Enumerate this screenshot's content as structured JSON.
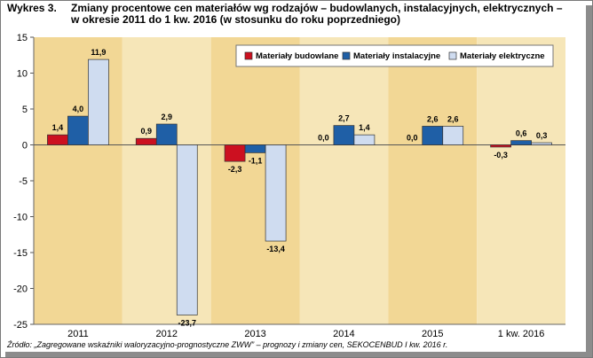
{
  "chart_label": "Wykres 3.",
  "chart_title": "Zmiany procentowe cen materiałów wg rodzajów – budowlanych, instalacyjnych, elektrycznych – w okresie 2011 do 1 kw. 2016 (w stosunku do roku poprzedniego)",
  "source": "Źródło: „Zagregowane wskaźniki waloryzacyjno-prognostyczne ZWW” – prognozy i zmiany cen, SEKOCENBUD I kw. 2016 r.",
  "colors": {
    "budowlane": "#cc1020",
    "instalacyjne": "#1f5fa6",
    "elektryczne": "#cfdcf0",
    "plot_band_light": "#f6e6b8",
    "plot_band_dark": "#f2d795"
  },
  "chart_data": {
    "type": "bar",
    "categories": [
      "2011",
      "2012",
      "2013",
      "2014",
      "2015",
      "1 kw. 2016"
    ],
    "series": [
      {
        "name": "Materiały budowlane",
        "values": [
          1.4,
          0.9,
          -2.3,
          0.0,
          0.0,
          -0.3
        ],
        "labels": [
          "1,4",
          "0,9",
          "-2,3",
          "0,0",
          "0,0",
          "-0,3"
        ]
      },
      {
        "name": "Materiały instalacyjne",
        "values": [
          4.0,
          2.9,
          -1.1,
          2.7,
          2.6,
          0.6
        ],
        "labels": [
          "4,0",
          "2,9",
          "-1,1",
          "2,7",
          "2,6",
          "0,6"
        ]
      },
      {
        "name": "Materiały elektryczne",
        "values": [
          11.9,
          -23.7,
          -13.4,
          1.4,
          2.6,
          0.3
        ],
        "labels": [
          "11,9",
          "-23,7",
          "-13,4",
          "1,4",
          "2,6",
          "0,3"
        ]
      }
    ],
    "ylim": [
      -25,
      15
    ],
    "yticks": [
      15,
      10,
      5,
      0,
      -5,
      -10,
      -15,
      -20,
      -25
    ],
    "legend_position": "top-right"
  }
}
